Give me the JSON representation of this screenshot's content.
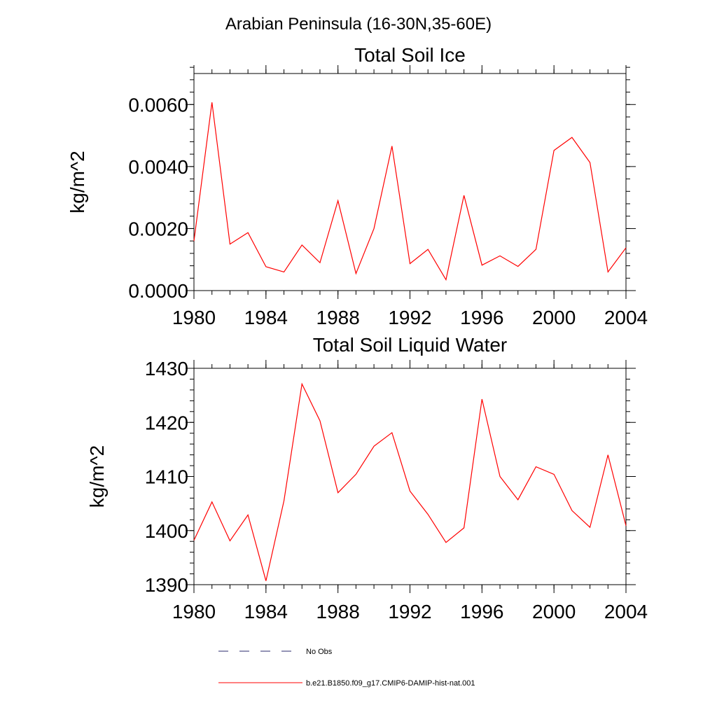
{
  "figure": {
    "supertitle": "Arabian Peninsula (16-30N,35-60E)"
  },
  "chart_data": [
    {
      "type": "line",
      "title": "Total Soil Ice",
      "xlabel": "",
      "ylabel": "kg/m^2",
      "xlim": [
        1980,
        2004
      ],
      "ylim": [
        0.0,
        0.007
      ],
      "x_ticks": [
        1980,
        1984,
        1988,
        1992,
        1996,
        2000,
        2004
      ],
      "x_tick_labels": [
        "1980",
        "1984",
        "1988",
        "1992",
        "1996",
        "2000",
        "2004"
      ],
      "y_ticks": [
        0.0,
        0.002,
        0.004,
        0.006
      ],
      "y_tick_labels": [
        "0.0000",
        "0.0020",
        "0.0040",
        "0.0060"
      ],
      "grid": false,
      "series": [
        {
          "name": "b.e21.B1850.f09_g17.CMIP6-DAMIP-hist-nat.001",
          "color": "#ff0000",
          "x": [
            1980,
            1981,
            1982,
            1983,
            1984,
            1985,
            1986,
            1987,
            1988,
            1989,
            1990,
            1991,
            1992,
            1993,
            1994,
            1995,
            1996,
            1997,
            1998,
            1999,
            2000,
            2001,
            2002,
            2003,
            2004
          ],
          "values": [
            0.0016,
            0.00607,
            0.0015,
            0.00187,
            0.00077,
            0.0006,
            0.00147,
            0.0009,
            0.0029,
            0.00055,
            0.002,
            0.00466,
            0.00087,
            0.00133,
            0.00035,
            0.00307,
            0.00082,
            0.00112,
            0.00078,
            0.00133,
            0.00452,
            0.00494,
            0.00413,
            0.0006,
            0.00138
          ]
        }
      ]
    },
    {
      "type": "line",
      "title": "Total Soil Liquid Water",
      "xlabel": "",
      "ylabel": "kg/m^2",
      "xlim": [
        1980,
        2004
      ],
      "ylim": [
        1390,
        1430
      ],
      "x_ticks": [
        1980,
        1984,
        1988,
        1992,
        1996,
        2000,
        2004
      ],
      "x_tick_labels": [
        "1980",
        "1984",
        "1988",
        "1992",
        "1996",
        "2000",
        "2004"
      ],
      "y_ticks": [
        1390,
        1400,
        1410,
        1420,
        1430
      ],
      "y_tick_labels": [
        "1390",
        "1400",
        "1410",
        "1420",
        "1430"
      ],
      "grid": false,
      "series": [
        {
          "name": "b.e21.B1850.f09_g17.CMIP6-DAMIP-hist-nat.001",
          "color": "#ff0000",
          "x": [
            1980,
            1981,
            1982,
            1983,
            1984,
            1985,
            1986,
            1987,
            1988,
            1989,
            1990,
            1991,
            1992,
            1993,
            1994,
            1995,
            1996,
            1997,
            1998,
            1999,
            2000,
            2001,
            2002,
            2003,
            2004
          ],
          "values": [
            1398.2,
            1405.3,
            1398.1,
            1402.9,
            1390.7,
            1405.5,
            1427.1,
            1420.3,
            1407.0,
            1410.4,
            1415.6,
            1418.1,
            1407.3,
            1403.0,
            1397.8,
            1400.5,
            1424.3,
            1410.0,
            1405.7,
            1411.8,
            1410.4,
            1403.7,
            1400.6,
            1414.0,
            1400.9
          ]
        }
      ]
    }
  ],
  "legend": {
    "placement": "bottom",
    "items": [
      {
        "label": "No Obs",
        "style": "dashed",
        "color": "#2a2a6e"
      },
      {
        "label": "b.e21.B1850.f09_g17.CMIP6-DAMIP-hist-nat.001",
        "style": "solid",
        "color": "#ff0000"
      }
    ]
  }
}
